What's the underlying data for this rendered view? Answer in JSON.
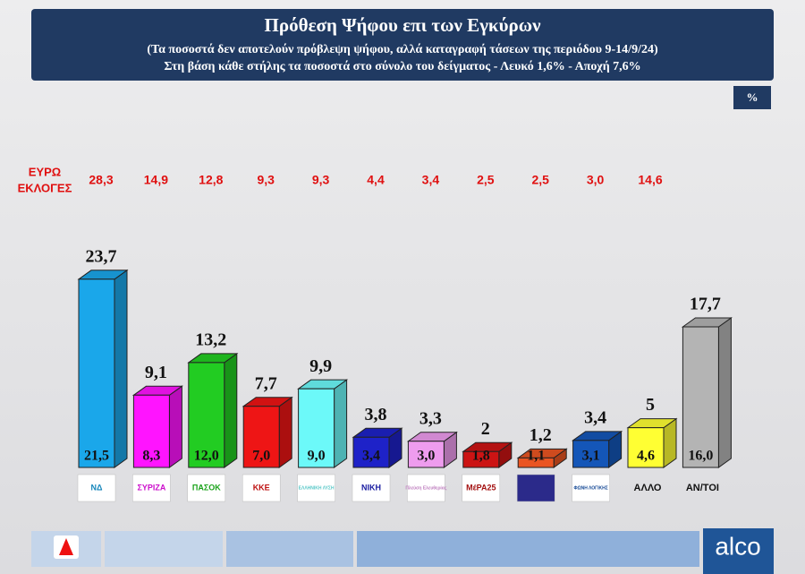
{
  "chart_data": {
    "type": "bar3d",
    "title": "Πρόθεση Ψήφου επι των Εγκύρων",
    "subtitle": [
      "(Τα ποσοστά δεν αποτελούν πρόβλεψη ψήφου, αλλά καταγραφή τάσεων της περιόδου  9-14/9/24)",
      "Στη βάση κάθε στήλης τα ποσοστά στο σύνολο του δείγματος - Λευκό 1,6% - Αποχή 7,6%"
    ],
    "unit": "%",
    "euro_row_label": [
      "ΕΥΡΩ",
      "ΕΚΛΟΓΕΣ"
    ],
    "categories": [
      "ΝΔ",
      "ΣΥΡΙΖΑ",
      "ΠΑΣΟΚ",
      "ΚΚΕ",
      "ΕΛΛΗΝΙΚΗ ΛΥΣΗ",
      "ΝΙΚΗ",
      "Πλεύση Ελευθερίας",
      "ΜέΡΑ25",
      null,
      "ΦΩΝΗ ΛΟΓΙΚΗΣ",
      "ΑΛΛΟ",
      "ΑΝ/ΤΟΙ"
    ],
    "values": [
      23.7,
      9.1,
      13.2,
      7.7,
      9.9,
      3.8,
      3.3,
      2,
      1.2,
      3.4,
      5,
      17.7
    ],
    "value_labels": [
      "23,7",
      "9,1",
      "13,2",
      "7,7",
      "9,9",
      "3,8",
      "3,3",
      "2",
      "1,2",
      "3,4",
      "5",
      "17,7"
    ],
    "sample_values": [
      21.5,
      8.3,
      12.0,
      7.0,
      9.0,
      3.4,
      3.0,
      1.8,
      1.1,
      3.1,
      4.6,
      16.0
    ],
    "sample_value_labels": [
      "21,5",
      "8,3",
      "12,0",
      "7,0",
      "9,0",
      "3,4",
      "3,0",
      "1,8",
      "1,1",
      "3,1",
      "4,6",
      "16,0"
    ],
    "euro_values": [
      28.3,
      14.9,
      12.8,
      9.3,
      9.3,
      4.4,
      3.4,
      2.5,
      2.5,
      3.0,
      14.6,
      null
    ],
    "euro_value_labels": [
      "28,3",
      "14,9",
      "12,8",
      "9,3",
      "9,3",
      "4,4",
      "3,4",
      "2,5",
      "2,5",
      "3,0",
      "14,6",
      null
    ],
    "colors": [
      "#1aa7ea",
      "#ff14ff",
      "#22cc22",
      "#ee1515",
      "#6cf9f9",
      "#1e22c8",
      "#ee9cee",
      "#cc1414",
      "#ea5522",
      "#1456b8",
      "#ffff33",
      "#b4b4b4"
    ],
    "brand": "alco"
  }
}
